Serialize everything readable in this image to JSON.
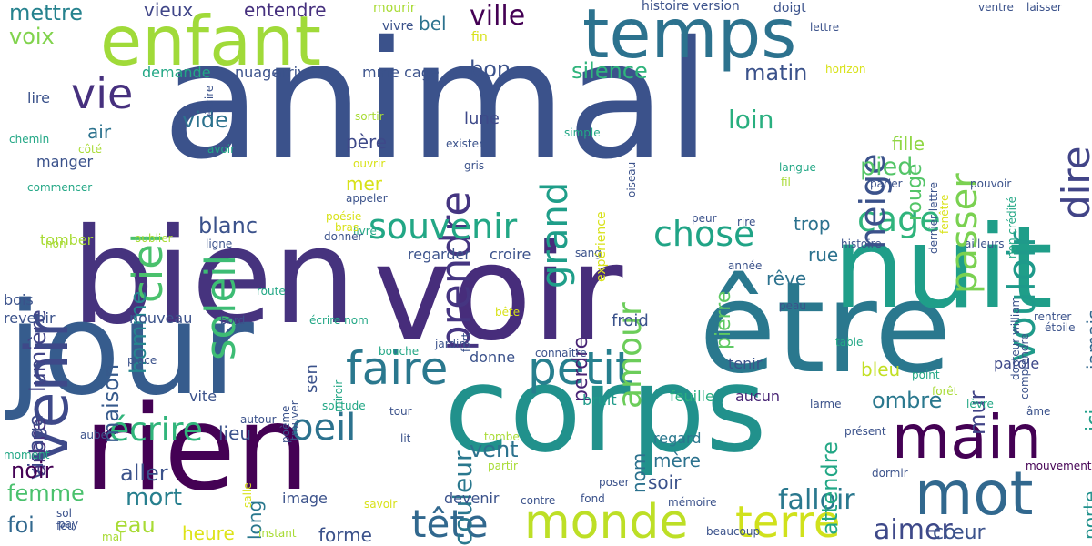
{
  "words": [
    {
      "text": "animal",
      "color": "#3b528b",
      "vertical": false
    },
    {
      "text": "bien",
      "color": "#46337e",
      "vertical": false
    },
    {
      "text": "jour",
      "color": "#365c8d",
      "vertical": false
    },
    {
      "text": "rien",
      "color": "#440154",
      "vertical": false
    },
    {
      "text": "voir",
      "color": "#472d7b",
      "vertical": false
    },
    {
      "text": "corps",
      "color": "#21918c",
      "vertical": false
    },
    {
      "text": "être",
      "color": "#2a788e",
      "vertical": false
    },
    {
      "text": "nuit",
      "color": "#1f9e89",
      "vertical": false
    },
    {
      "text": "enfant",
      "color": "#a0da39",
      "vertical": false
    },
    {
      "text": "temps",
      "color": "#2c728e",
      "vertical": false
    },
    {
      "text": "venir",
      "color": "#3e4989",
      "vertical": true
    },
    {
      "text": "main",
      "color": "#440154",
      "vertical": false
    },
    {
      "text": "mot",
      "color": "#31688e",
      "vertical": false
    },
    {
      "text": "monde",
      "color": "#bddf26",
      "vertical": false
    },
    {
      "text": "terre",
      "color": "#d0e11c",
      "vertical": false
    },
    {
      "text": "faire",
      "color": "#2a788e",
      "vertical": false
    },
    {
      "text": "petit",
      "color": "#277f8e",
      "vertical": false
    },
    {
      "text": "vie",
      "color": "#46307e",
      "vertical": false
    },
    {
      "text": "ciel",
      "color": "#4ac16d",
      "vertical": true
    },
    {
      "text": "soleil",
      "color": "#3dbc74",
      "vertical": true
    },
    {
      "text": "prendre",
      "color": "#453581",
      "vertical": true
    },
    {
      "text": "souvenir",
      "color": "#22a785",
      "vertical": false
    },
    {
      "text": "chose",
      "color": "#20a486",
      "vertical": false
    },
    {
      "text": "cage",
      "color": "#2fb47c",
      "vertical": false
    },
    {
      "text": "vouloir",
      "color": "#1f9a8a",
      "vertical": true
    },
    {
      "text": "dire",
      "color": "#414487",
      "vertical": true
    },
    {
      "text": "passer",
      "color": "#7ad151",
      "vertical": true
    },
    {
      "text": "neige",
      "color": "#3b528b",
      "vertical": true
    },
    {
      "text": "grand",
      "color": "#1f9e89",
      "vertical": true
    },
    {
      "text": "amour",
      "color": "#6ccd5a",
      "vertical": true
    },
    {
      "text": "oeil",
      "color": "#2c728e",
      "vertical": false
    },
    {
      "text": "tête",
      "color": "#31688e",
      "vertical": false
    },
    {
      "text": "écrire",
      "color": "#31b57b",
      "vertical": false
    },
    {
      "text": "falloir",
      "color": "#2a788e",
      "vertical": false
    },
    {
      "text": "aimer",
      "color": "#3e4989",
      "vertical": false
    },
    {
      "text": "ville",
      "color": "#440154",
      "vertical": false
    },
    {
      "text": "silence",
      "color": "#2fb47c",
      "vertical": false
    },
    {
      "text": "matin",
      "color": "#3b528b",
      "vertical": false
    },
    {
      "text": "loin",
      "color": "#29af7f",
      "vertical": false
    },
    {
      "text": "pied",
      "color": "#54c568",
      "vertical": false
    },
    {
      "text": "blanc",
      "color": "#3b528b",
      "vertical": false
    },
    {
      "text": "vide",
      "color": "#2c728e",
      "vertical": false
    },
    {
      "text": "mettre",
      "color": "#26828e",
      "vertical": false
    },
    {
      "text": "voix",
      "color": "#81d34d",
      "vertical": false
    },
    {
      "text": "entendre",
      "color": "#46307e",
      "vertical": false
    },
    {
      "text": "vieux",
      "color": "#404688",
      "vertical": false
    },
    {
      "text": "bon",
      "color": "#3b528b",
      "vertical": false
    },
    {
      "text": "lumière",
      "color": "#414487",
      "vertical": true
    },
    {
      "text": "arbre",
      "color": "#46337e",
      "vertical": true
    },
    {
      "text": "visage",
      "color": "#3e4989",
      "vertical": true
    },
    {
      "text": "homme",
      "color": "#25858e",
      "vertical": true
    },
    {
      "text": "maison",
      "color": "#375a8c",
      "vertical": true
    },
    {
      "text": "noir",
      "color": "#440154",
      "vertical": false
    },
    {
      "text": "femme",
      "color": "#4ac16d",
      "vertical": false
    },
    {
      "text": "foi",
      "color": "#31688e",
      "vertical": false
    },
    {
      "text": "mort",
      "color": "#277f8e",
      "vertical": false
    },
    {
      "text": "aller",
      "color": "#3b528b",
      "vertical": false
    },
    {
      "text": "eau",
      "color": "#a8db34",
      "vertical": false
    },
    {
      "text": "heure",
      "color": "#dde318",
      "vertical": false
    },
    {
      "text": "forme",
      "color": "#3b528b",
      "vertical": false
    },
    {
      "text": "vent",
      "color": "#2c728e",
      "vertical": false
    },
    {
      "text": "nom",
      "color": "#2c728e",
      "vertical": true
    },
    {
      "text": "couleur",
      "color": "#2a788e",
      "vertical": true
    },
    {
      "text": "lieu",
      "color": "#3b528b",
      "vertical": false
    },
    {
      "text": "long",
      "color": "#2a788e",
      "vertical": true
    },
    {
      "text": "mère",
      "color": "#2c728e",
      "vertical": false
    },
    {
      "text": "soir",
      "color": "#3b528b",
      "vertical": false
    },
    {
      "text": "cœur",
      "color": "#3b528b",
      "vertical": false
    },
    {
      "text": "ombre",
      "color": "#2a788e",
      "vertical": false
    },
    {
      "text": "bleu",
      "color": "#c2df23",
      "vertical": false
    },
    {
      "text": "jamais",
      "color": "#31688e",
      "vertical": true
    },
    {
      "text": "ici",
      "color": "#1f9e89",
      "vertical": true
    },
    {
      "text": "porte",
      "color": "#21918c",
      "vertical": true
    },
    {
      "text": "rouge",
      "color": "#54c568",
      "vertical": true
    },
    {
      "text": "fille",
      "color": "#90d743",
      "vertical": false
    },
    {
      "text": "pierre",
      "color": "#5ec962",
      "vertical": true
    },
    {
      "text": "attendre",
      "color": "#22a785",
      "vertical": true
    },
    {
      "text": "mur",
      "color": "#414487",
      "vertical": true
    },
    {
      "text": "trop",
      "color": "#2c728e",
      "vertical": false
    },
    {
      "text": "rêve",
      "color": "#2c728e",
      "vertical": false
    },
    {
      "text": "rue",
      "color": "#2c728e",
      "vertical": false
    },
    {
      "text": "père",
      "color": "#3e4989",
      "vertical": false
    },
    {
      "text": "mer",
      "color": "#d8e219",
      "vertical": false
    },
    {
      "text": "air",
      "color": "#2c728e",
      "vertical": false
    },
    {
      "text": "bel",
      "color": "#2c728e",
      "vertical": false
    },
    {
      "text": "lune",
      "color": "#3e4989",
      "vertical": false
    },
    {
      "text": "perdre",
      "color": "#482475",
      "vertical": true
    },
    {
      "text": "froid",
      "color": "#3b528b",
      "vertical": false
    },
    {
      "text": "tenir",
      "color": "#3b528b",
      "vertical": false
    },
    {
      "text": "parole",
      "color": "#3e4989",
      "vertical": false
    },
    {
      "text": "aucun",
      "color": "#482475",
      "vertical": false
    },
    {
      "text": "feuille",
      "color": "#29af7f",
      "vertical": false
    },
    {
      "text": "bruit",
      "color": "#1f9a8a",
      "vertical": false
    },
    {
      "text": "regard",
      "color": "#2a788e",
      "vertical": false
    },
    {
      "text": "devenir",
      "color": "#3b528b",
      "vertical": false
    },
    {
      "text": "image",
      "color": "#3b528b",
      "vertical": false
    },
    {
      "text": "donne",
      "color": "#3b528b",
      "vertical": false
    },
    {
      "text": "croire",
      "color": "#3b528b",
      "vertical": false
    },
    {
      "text": "regarder",
      "color": "#3b528b",
      "vertical": false
    },
    {
      "text": "nouveau",
      "color": "#3b528b",
      "vertical": false
    },
    {
      "text": "revenir",
      "color": "#3b528b",
      "vertical": false
    },
    {
      "text": "bois",
      "color": "#3b528b",
      "vertical": false
    },
    {
      "text": "manger",
      "color": "#3b528b",
      "vertical": false
    },
    {
      "text": "lire",
      "color": "#3b528b",
      "vertical": false
    },
    {
      "text": "tomber",
      "color": "#a8db34",
      "vertical": false
    },
    {
      "text": "demande",
      "color": "#22a785",
      "vertical": false
    },
    {
      "text": "nuage",
      "color": "#3b528b",
      "vertical": false
    },
    {
      "text": "arriver",
      "color": "#3b528b",
      "vertical": false
    },
    {
      "text": "mme cage",
      "color": "#3b528b",
      "vertical": false
    },
    {
      "text": "vivre",
      "color": "#3b528b",
      "vertical": false
    },
    {
      "text": "mourir",
      "color": "#a8db34",
      "vertical": false
    },
    {
      "text": "fin",
      "color": "#d8e219",
      "vertical": false
    },
    {
      "text": "histoire version",
      "color": "#3b528b",
      "vertical": false
    },
    {
      "text": "doigt",
      "color": "#3b528b",
      "vertical": false
    },
    {
      "text": "lettre",
      "color": "#3b528b",
      "vertical": false
    },
    {
      "text": "ventre",
      "color": "#3b528b",
      "vertical": false
    },
    {
      "text": "laisser",
      "color": "#3b528b",
      "vertical": false
    },
    {
      "text": "horizon",
      "color": "#d8e219",
      "vertical": false
    },
    {
      "text": "sortir",
      "color": "#a8db34",
      "vertical": false
    },
    {
      "text": "simple",
      "color": "#22a785",
      "vertical": false
    },
    {
      "text": "exister",
      "color": "#3b528b",
      "vertical": false
    },
    {
      "text": "gris",
      "color": "#3b528b",
      "vertical": false
    },
    {
      "text": "appeler",
      "color": "#3b528b",
      "vertical": false
    },
    {
      "text": "ouvrir",
      "color": "#d8e219",
      "vertical": false
    },
    {
      "text": "avoir",
      "color": "#22a785",
      "vertical": false
    },
    {
      "text": "chemin",
      "color": "#22a785",
      "vertical": false
    },
    {
      "text": "côté",
      "color": "#a8db34",
      "vertical": false
    },
    {
      "text": "commencer",
      "color": "#22a785",
      "vertical": false
    },
    {
      "text": "livre",
      "color": "#22a785",
      "vertical": false
    },
    {
      "text": "poésie",
      "color": "#d8e219",
      "vertical": false
    },
    {
      "text": "bras",
      "color": "#d8e219",
      "vertical": false
    },
    {
      "text": "donner",
      "color": "#3b528b",
      "vertical": false
    },
    {
      "text": "oublier",
      "color": "#a8db34",
      "vertical": false
    },
    {
      "text": "ligne",
      "color": "#3b528b",
      "vertical": false
    },
    {
      "text": "non",
      "color": "#a8db34",
      "vertical": false
    },
    {
      "text": "peur",
      "color": "#3b528b",
      "vertical": false
    },
    {
      "text": "rire",
      "color": "#3b528b",
      "vertical": false
    },
    {
      "text": "sang",
      "color": "#3b528b",
      "vertical": false
    },
    {
      "text": "année",
      "color": "#3b528b",
      "vertical": false
    },
    {
      "text": "langue",
      "color": "#22a785",
      "vertical": false
    },
    {
      "text": "fil",
      "color": "#a8db34",
      "vertical": false
    },
    {
      "text": "parler",
      "color": "#3b528b",
      "vertical": false
    },
    {
      "text": "pouvoir",
      "color": "#3b528b",
      "vertical": false
    },
    {
      "text": "histoire",
      "color": "#3b528b",
      "vertical": false
    },
    {
      "text": "ailleurs",
      "color": "#3b528b",
      "vertical": false
    },
    {
      "text": "route",
      "color": "#22a785",
      "vertical": false
    },
    {
      "text": "bord",
      "color": "#3b528b",
      "vertical": false
    },
    {
      "text": "écrire nom",
      "color": "#22a785",
      "vertical": false
    },
    {
      "text": "bête",
      "color": "#d8e219",
      "vertical": false
    },
    {
      "text": "peau",
      "color": "#3b528b",
      "vertical": false
    },
    {
      "text": "rentrer",
      "color": "#3b528b",
      "vertical": false
    },
    {
      "text": "étoile",
      "color": "#3b528b",
      "vertical": false
    },
    {
      "text": "table",
      "color": "#22a785",
      "vertical": false
    },
    {
      "text": "jardin",
      "color": "#3b528b",
      "vertical": false
    },
    {
      "text": "bouche",
      "color": "#22a785",
      "vertical": false
    },
    {
      "text": "connaître",
      "color": "#3b528b",
      "vertical": false
    },
    {
      "text": "place",
      "color": "#3b528b",
      "vertical": false
    },
    {
      "text": "point",
      "color": "#22a785",
      "vertical": false
    },
    {
      "text": "forêt",
      "color": "#a8db34",
      "vertical": false
    },
    {
      "text": "lèvre",
      "color": "#22a785",
      "vertical": false
    },
    {
      "text": "larme",
      "color": "#3b528b",
      "vertical": false
    },
    {
      "text": "âme",
      "color": "#3b528b",
      "vertical": false
    },
    {
      "text": "tour",
      "color": "#3b528b",
      "vertical": false
    },
    {
      "text": "solitude",
      "color": "#22a785",
      "vertical": false
    },
    {
      "text": "autour",
      "color": "#3b528b",
      "vertical": false
    },
    {
      "text": "aube",
      "color": "#3b528b",
      "vertical": false
    },
    {
      "text": "lit",
      "color": "#3b528b",
      "vertical": false
    },
    {
      "text": "tombe",
      "color": "#a8db34",
      "vertical": false
    },
    {
      "text": "partir",
      "color": "#a8db34",
      "vertical": false
    },
    {
      "text": "présent",
      "color": "#3b528b",
      "vertical": false
    },
    {
      "text": "moment",
      "color": "#22a785",
      "vertical": false
    },
    {
      "text": "dormir",
      "color": "#3b528b",
      "vertical": false
    },
    {
      "text": "mouvement",
      "color": "#440154",
      "vertical": false
    },
    {
      "text": "poser",
      "color": "#3b528b",
      "vertical": false
    },
    {
      "text": "fond",
      "color": "#3b528b",
      "vertical": false
    },
    {
      "text": "mémoire",
      "color": "#3b528b",
      "vertical": false
    },
    {
      "text": "contre",
      "color": "#3b528b",
      "vertical": false
    },
    {
      "text": "savoir",
      "color": "#d8e219",
      "vertical": false
    },
    {
      "text": "sol",
      "color": "#3b528b",
      "vertical": false
    },
    {
      "text": "feu",
      "color": "#3b528b",
      "vertical": false
    },
    {
      "text": "pay",
      "color": "#3b528b",
      "vertical": false
    },
    {
      "text": "mal",
      "color": "#a8db34",
      "vertical": false
    },
    {
      "text": "instant",
      "color": "#a8db34",
      "vertical": false
    },
    {
      "text": "beaucoup",
      "color": "#3b528b",
      "vertical": false
    },
    {
      "text": "vite",
      "color": "#3b528b",
      "vertical": false
    },
    {
      "text": "sen",
      "color": "#3b528b",
      "vertical": true
    },
    {
      "text": "trouver",
      "color": "#3b528b",
      "vertical": true
    },
    {
      "text": "poème",
      "color": "#3b528b",
      "vertical": true
    },
    {
      "text": "miroir",
      "color": "#22a785",
      "vertical": true
    },
    {
      "text": "fort",
      "color": "#3b528b",
      "vertical": true
    },
    {
      "text": "salle",
      "color": "#d8e219",
      "vertical": true
    },
    {
      "text": "expérience",
      "color": "#d8e219",
      "vertical": true
    },
    {
      "text": "oiseau",
      "color": "#3b528b",
      "vertical": true
    },
    {
      "text": "fenêtre",
      "color": "#d8e219",
      "vertical": true
    },
    {
      "text": "dernier lettre",
      "color": "#3b528b",
      "vertical": true
    },
    {
      "text": "non crédité",
      "color": "#22a785",
      "vertical": true
    },
    {
      "text": "docteur william",
      "color": "#3b528b",
      "vertical": true
    },
    {
      "text": "comprendre",
      "color": "#3b528b",
      "vertical": true
    },
    {
      "text": "écrire",
      "color": "#3b528b",
      "vertical": true
    },
    {
      "text": "part",
      "color": "#d8e219",
      "vertical": true
    }
  ]
}
